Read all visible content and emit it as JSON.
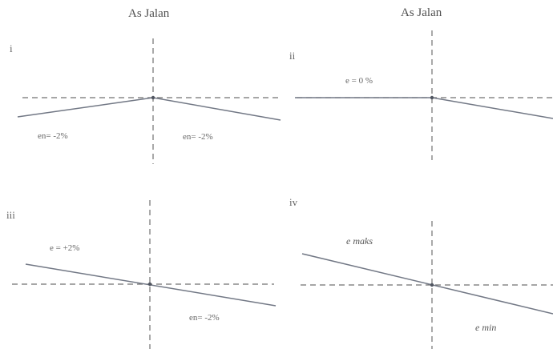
{
  "headings": {
    "left": "As Jalan",
    "right": "As Jalan"
  },
  "panels": [
    {
      "id": "i",
      "labels": [
        "en= -2%",
        "en= -2%"
      ]
    },
    {
      "id": "ii",
      "labels": [
        "e = 0 %"
      ]
    },
    {
      "id": "iii",
      "labels": [
        "e = +2%",
        "en= -2%"
      ]
    },
    {
      "id": "iv",
      "labels": [
        "e maks",
        "e min"
      ]
    }
  ]
}
